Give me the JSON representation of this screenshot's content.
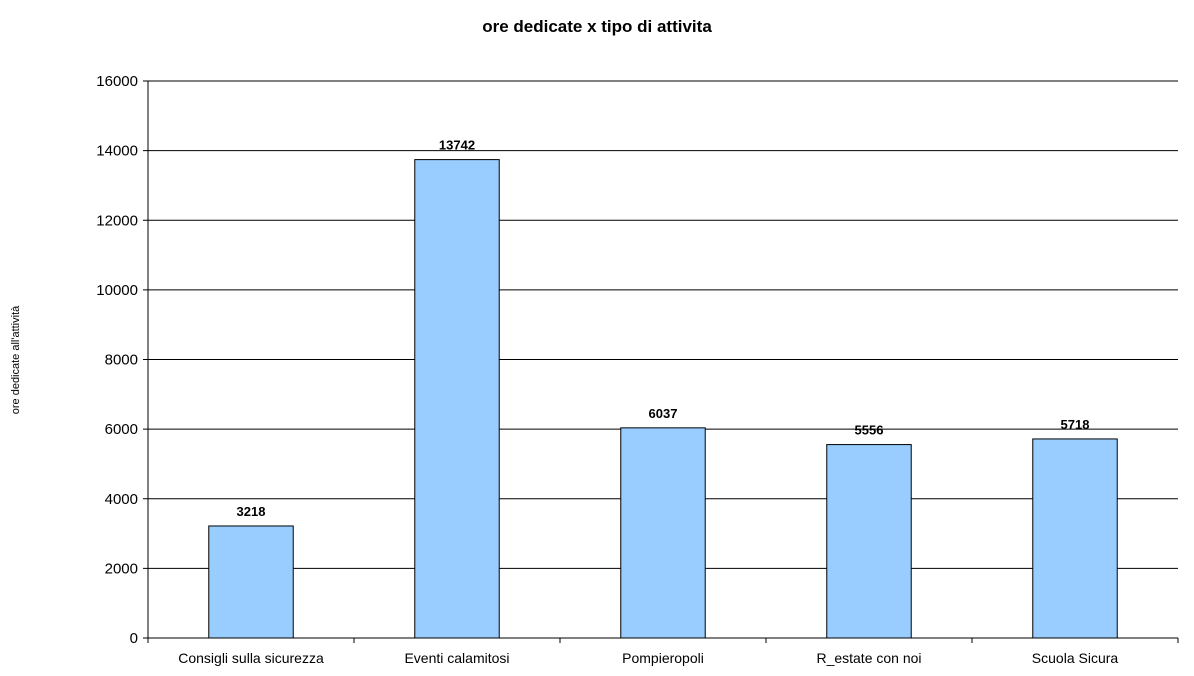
{
  "chart_data": {
    "type": "bar",
    "title": "ore dedicate x tipo di attivita",
    "xlabel": "",
    "ylabel": "ore dedicate all'attività",
    "categories": [
      "Consigli sulla sicurezza",
      "Eventi calamitosi",
      "Pompieropoli",
      "R_estate con  noi",
      "Scuola Sicura"
    ],
    "values": [
      3218,
      13742,
      6037,
      5556,
      5718
    ],
    "data_labels": [
      "3218",
      "13742",
      "6037",
      "5556",
      "5718"
    ],
    "ylim": [
      0,
      16000
    ],
    "yticks": [
      0,
      2000,
      4000,
      6000,
      8000,
      10000,
      12000,
      14000,
      16000
    ],
    "ytick_labels": [
      "0",
      "2000",
      "4000",
      "6000",
      "8000",
      "10000",
      "12000",
      "14000",
      "16000"
    ],
    "grid": true,
    "legend": "none",
    "colors": {
      "bar_fill": "#99ccff",
      "bar_stroke": "#000000",
      "grid": "#000000",
      "background": "#ffffff"
    }
  }
}
